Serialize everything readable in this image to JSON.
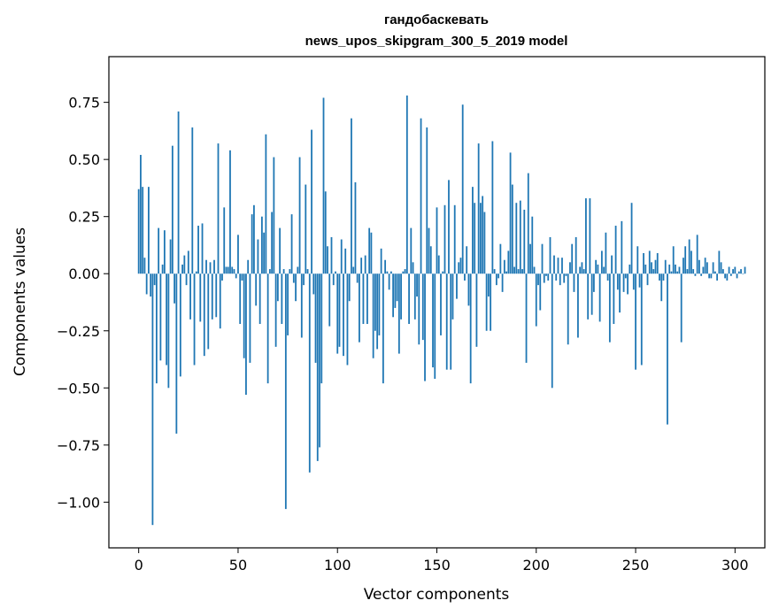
{
  "chart_data": {
    "type": "bar",
    "title": "гандобаскевать",
    "subtitle": "news_upos_skipgram_300_5_2019 model",
    "xlabel": "Vector components",
    "ylabel": "Components values",
    "xlim": [
      -15,
      315
    ],
    "ylim": [
      -1.2,
      0.95
    ],
    "xticks": [
      0,
      50,
      100,
      150,
      200,
      250,
      300
    ],
    "yticks": [
      -1.0,
      -0.75,
      -0.5,
      -0.25,
      0.0,
      0.25,
      0.5,
      0.75
    ],
    "ytick_labels": [
      "−1.00",
      "−0.75",
      "−0.50",
      "−0.25",
      "0.00",
      "0.25",
      "0.50",
      "0.75"
    ],
    "xtick_labels": [
      "0",
      "50",
      "100",
      "150",
      "200",
      "250",
      "300"
    ],
    "bar_color": "#1f77b4",
    "grid": false,
    "values": [
      0.37,
      0.52,
      0.38,
      0.07,
      -0.09,
      0.38,
      -0.1,
      -1.1,
      -0.05,
      -0.48,
      0.2,
      -0.38,
      0.04,
      0.19,
      -0.4,
      -0.5,
      0.15,
      0.56,
      -0.13,
      -0.7,
      0.71,
      -0.45,
      0.04,
      0.08,
      -0.05,
      0.1,
      -0.2,
      0.64,
      -0.4,
      0.01,
      0.21,
      -0.21,
      0.22,
      -0.36,
      0.06,
      -0.33,
      0.05,
      -0.2,
      0.06,
      -0.19,
      0.57,
      -0.24,
      -0.03,
      0.29,
      0.03,
      0.03,
      0.54,
      0.03,
      0.02,
      -0.02,
      0.17,
      -0.22,
      -0.03,
      -0.37,
      -0.53,
      0.06,
      -0.39,
      0.26,
      0.3,
      -0.14,
      0.15,
      -0.22,
      0.25,
      0.18,
      0.61,
      -0.48,
      0.02,
      0.27,
      0.51,
      -0.32,
      -0.12,
      0.2,
      -0.22,
      0.02,
      -1.03,
      -0.27,
      0.02,
      0.26,
      -0.04,
      -0.12,
      0.03,
      0.51,
      -0.28,
      -0.05,
      0.39,
      0.02,
      -0.87,
      0.63,
      -0.09,
      -0.39,
      -0.82,
      -0.76,
      -0.48,
      0.77,
      0.36,
      0.12,
      -0.23,
      0.16,
      -0.05,
      0.01,
      -0.35,
      -0.32,
      0.15,
      -0.36,
      0.11,
      -0.4,
      -0.12,
      0.68,
      0.03,
      0.4,
      -0.04,
      -0.3,
      0.07,
      -0.22,
      0.08,
      -0.22,
      0.2,
      0.18,
      -0.37,
      -0.25,
      -0.33,
      -0.27,
      0.11,
      -0.48,
      0.06,
      0.01,
      -0.07,
      0.01,
      -0.19,
      -0.15,
      -0.12,
      -0.35,
      -0.2,
      0.01,
      0.02,
      0.78,
      -0.22,
      0.2,
      0.05,
      -0.2,
      -0.1,
      -0.31,
      0.68,
      -0.29,
      -0.47,
      0.64,
      0.2,
      0.12,
      -0.41,
      -0.46,
      0.29,
      0.08,
      -0.27,
      0.01,
      0.3,
      -0.42,
      0.41,
      -0.42,
      -0.2,
      0.3,
      -0.11,
      0.05,
      0.07,
      0.74,
      -0.03,
      0.12,
      -0.14,
      -0.48,
      0.38,
      0.31,
      -0.32,
      0.57,
      0.31,
      0.34,
      0.27,
      -0.25,
      -0.1,
      -0.25,
      0.58,
      0.02,
      -0.05,
      -0.02,
      0.13,
      -0.08,
      0.06,
      0.01,
      0.1,
      0.53,
      0.39,
      0.03,
      0.31,
      0.02,
      0.32,
      0.02,
      0.28,
      -0.39,
      0.44,
      0.13,
      0.25,
      0.03,
      -0.23,
      -0.05,
      -0.16,
      0.13,
      -0.04,
      -0.01,
      -0.03,
      0.16,
      -0.5,
      0.08,
      -0.03,
      0.07,
      -0.05,
      0.07,
      -0.04,
      -0.01,
      -0.31,
      0.05,
      0.13,
      -0.08,
      0.16,
      -0.28,
      0.03,
      0.05,
      0.02,
      0.33,
      -0.2,
      0.33,
      -0.18,
      -0.08,
      0.06,
      0.04,
      -0.21,
      0.1,
      0.03,
      0.18,
      -0.03,
      -0.3,
      0.08,
      -0.22,
      0.21,
      -0.07,
      -0.17,
      0.23,
      -0.08,
      -0.02,
      -0.09,
      0.04,
      0.31,
      -0.07,
      -0.42,
      0.12,
      -0.06,
      -0.4,
      0.09,
      0.04,
      -0.05,
      0.1,
      0.05,
      0.02,
      0.06,
      0.09,
      -0.03,
      -0.12,
      -0.03,
      0.06,
      -0.66,
      0.04,
      0.01,
      0.12,
      0.04,
      0.01,
      0.03,
      -0.3,
      0.07,
      0.12,
      0.02,
      0.15,
      0.1,
      0.02,
      -0.01,
      0.17,
      0.06,
      -0.01,
      0.03,
      0.07,
      0.05,
      -0.02,
      -0.02,
      0.05,
      0.01,
      -0.03,
      0.1,
      0.05,
      0.02,
      -0.02,
      -0.03,
      0.03,
      -0.01,
      0.02,
      0.03,
      -0.02,
      0.01,
      0.02,
      0.0,
      0.03
    ]
  }
}
